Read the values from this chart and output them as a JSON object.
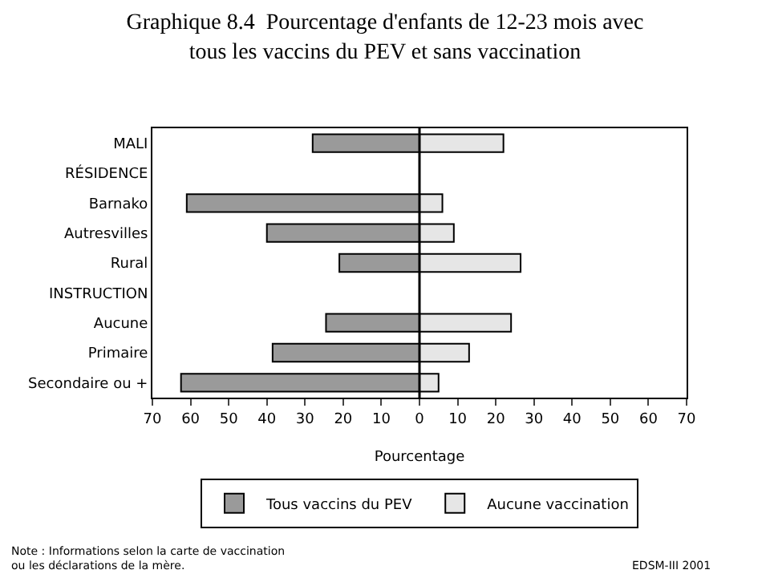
{
  "chart_data": {
    "type": "bar",
    "orientation": "horizontal",
    "title": "Graphique 8.4  Pourcentage d'enfants de 12-23 mois avec\ntous les vaccins du PEV et sans vaccination",
    "stacked": true,
    "xlabel": "Pourcentage",
    "categories": [
      "MALI",
      "RÉSIDENCE",
      "Barnako",
      "Autresvilles",
      "Rural",
      "INSTRUCTION",
      "Aucune",
      "Primaire",
      "Secondaire ou +"
    ],
    "series": [
      {
        "name": "Tous vaccins du PEV",
        "color": "#9a9a9a",
        "values": [
          -28,
          null,
          -61,
          -40,
          -21,
          null,
          -24.5,
          -38.5,
          -62.5
        ]
      },
      {
        "name": "Aucune vaccination",
        "color": "#e6e6e6",
        "values": [
          22,
          null,
          6,
          9,
          26.5,
          null,
          24,
          13,
          5
        ]
      }
    ],
    "xlim": [
      -70,
      70
    ],
    "xticks": [
      {
        "value": -70,
        "label": "70"
      },
      {
        "value": -60,
        "label": "60"
      },
      {
        "value": -50,
        "label": "50"
      },
      {
        "value": -40,
        "label": "40"
      },
      {
        "value": -30,
        "label": "30"
      },
      {
        "value": -20,
        "label": "20"
      },
      {
        "value": -10,
        "label": "10"
      },
      0,
      10,
      20,
      30,
      40,
      50,
      60,
      70
    ],
    "legend": "bottom",
    "ref_lines": [
      {
        "axis": "x",
        "value": 0,
        "color": "#000000"
      }
    ],
    "annotations": [
      "Note : Informations selon la carte de vaccination\nou les déclarations de la mère.",
      "EDSM-III 2001"
    ]
  }
}
